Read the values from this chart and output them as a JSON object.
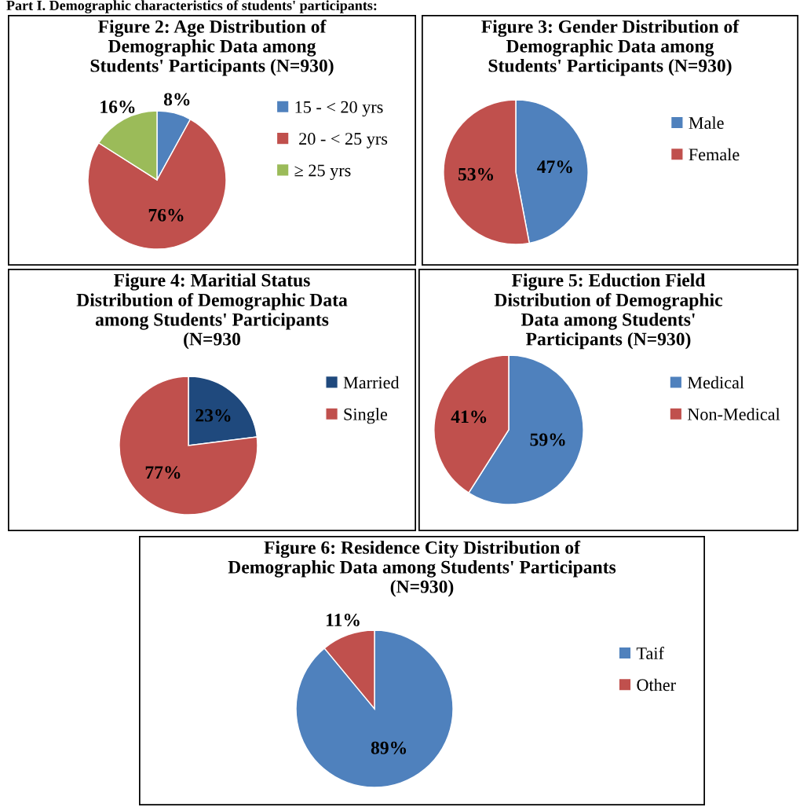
{
  "chart_data": [
    {
      "type": "other",
      "title": "Part I. Demographic characteristics of students' participants:"
    },
    {
      "type": "pie",
      "title": "Figure 2: Age Distribution of\nDemographic Data among\nStudents' Participants (N=930)",
      "categories": [
        "15 - < 20 yrs",
        " 20 - < 25 yrs",
        "≥ 25 yrs"
      ],
      "values": [
        8,
        76,
        16
      ],
      "colors": [
        "#4f81bd",
        "#c0504d",
        "#9bbb59"
      ],
      "value_labels": [
        "8%",
        "76%",
        "16%"
      ],
      "legend": "right"
    },
    {
      "type": "pie",
      "title": "Figure 3: Gender Distribution of\nDemographic Data among\nStudents' Participants (N=930)",
      "categories": [
        "Male",
        "Female"
      ],
      "values": [
        47,
        53
      ],
      "colors": [
        "#4f81bd",
        "#c0504d"
      ],
      "value_labels": [
        "47%",
        "53%"
      ],
      "legend": "right"
    },
    {
      "type": "pie",
      "title": "Figure 4: Maritial Status\nDistribution of Demographic Data\namong Students' Participants\n(N=930",
      "categories": [
        "Married",
        "Single"
      ],
      "values": [
        23,
        77
      ],
      "colors": [
        "#1f497d",
        "#c0504d"
      ],
      "value_labels": [
        "23%",
        "77%"
      ],
      "legend": "right"
    },
    {
      "type": "pie",
      "title": "Figure 5: Eduction Field\nDistribution of Demographic\nData among Students'\nParticipants (N=930)",
      "categories": [
        "Medical",
        "Non-Medical"
      ],
      "values": [
        59,
        41
      ],
      "colors": [
        "#4f81bd",
        "#c0504d"
      ],
      "value_labels": [
        "59%",
        "41%"
      ],
      "legend": "right"
    },
    {
      "type": "pie",
      "title": "Figure 6: Residence City Distribution of\nDemographic Data among Students' Participants\n(N=930)",
      "categories": [
        "Taif",
        "Other"
      ],
      "values": [
        89,
        11
      ],
      "colors": [
        "#4f81bd",
        "#c0504d"
      ],
      "value_labels": [
        "89%",
        "11%"
      ],
      "legend": "right"
    }
  ]
}
